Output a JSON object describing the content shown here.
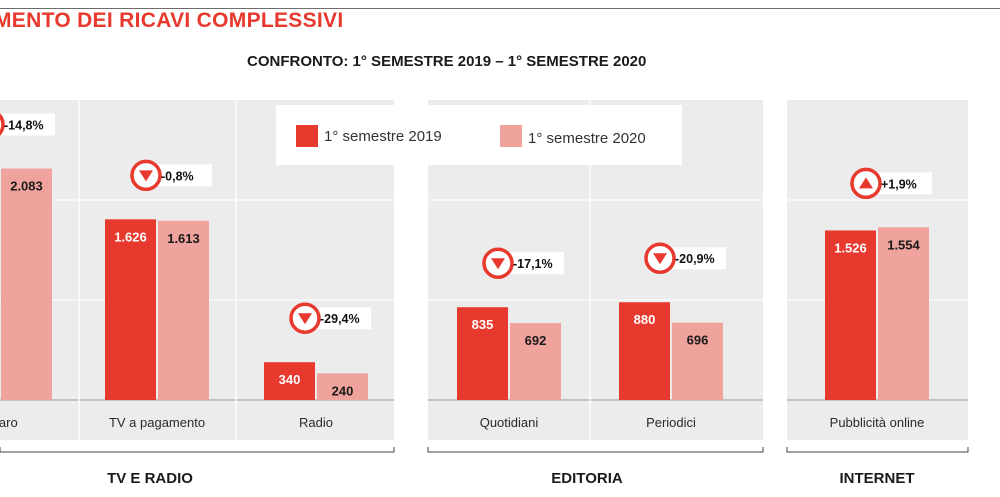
{
  "page": {
    "title": "MENTO DEI RICAVI COMPLESSIVI",
    "subtitle": "CONFRONTO: 1° SEMESTRE 2019 – 1° SEMESTRE 2020"
  },
  "colors": {
    "accent": "#e8392e",
    "series_2019": "#e8392e",
    "series_2020": "#f0a29c",
    "panel_bg": "#ececec",
    "marker_ring": "#e8392e"
  },
  "chart_data": {
    "type": "bar",
    "legend": {
      "placement": "top",
      "items": [
        "1° semestre 2019",
        "1° semestre 2020"
      ]
    },
    "series": [
      {
        "name": "1° semestre 2019",
        "values": [
          null,
          1626,
          340,
          835,
          880,
          1526
        ]
      },
      {
        "name": "1° semestre 2020",
        "values": [
          2083,
          1613,
          240,
          692,
          696,
          1554
        ]
      }
    ],
    "categories": [
      "chiaro",
      "TV a pagamento",
      "Radio",
      "Quotidiani",
      "Periodici",
      "Pubblicità online"
    ],
    "data_labels": {
      "s2019": [
        "",
        "1.626",
        "340",
        "835",
        "880",
        "1.526"
      ],
      "s2020": [
        "2.083",
        "1.613",
        "240",
        "692",
        "696",
        "1.554"
      ]
    },
    "variations": [
      {
        "label": "-14,8%",
        "direction": "down"
      },
      {
        "label": "-0,8%",
        "direction": "down"
      },
      {
        "label": "-29,4%",
        "direction": "down"
      },
      {
        "label": "-17,1%",
        "direction": "down"
      },
      {
        "label": "-20,9%",
        "direction": "down"
      },
      {
        "label": "+1,9%",
        "direction": "up"
      }
    ],
    "groups": [
      {
        "label": "TV E RADIO"
      },
      {
        "label": "EDITORIA"
      },
      {
        "label": "INTERNET"
      }
    ],
    "ylim": [
      0,
      2700
    ],
    "grid": true
  }
}
